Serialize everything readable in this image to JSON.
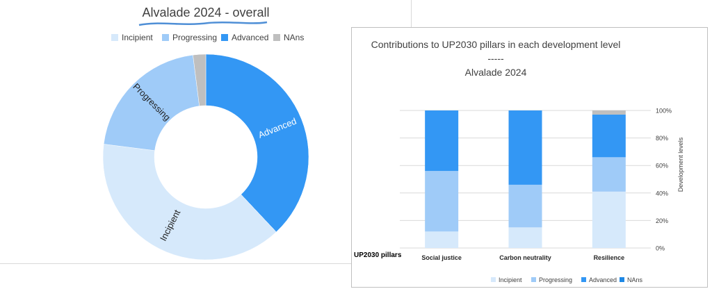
{
  "colors": {
    "incipient": "#d6e9fb",
    "progressing": "#9fcbf8",
    "advanced": "#3397f4",
    "nans": "#bfbfbf",
    "underline": "#4f8fd6",
    "grid": "#d9d9d9",
    "text": "#404040"
  },
  "chart_data": [
    {
      "type": "pie",
      "title": "Alvalade 2024 - overall",
      "legend_placement": "top",
      "legend": [
        "Incipient",
        "Progressing",
        "Advanced",
        "NAns"
      ],
      "slices": [
        {
          "name": "Advanced",
          "value": 38,
          "label": "Advanced",
          "color_key": "advanced"
        },
        {
          "name": "Incipient",
          "value": 39,
          "label": "Incipient",
          "color_key": "incipient"
        },
        {
          "name": "Progressing",
          "value": 21,
          "label": "Progressing",
          "color_key": "progressing"
        },
        {
          "name": "NAns",
          "value": 2,
          "label": "",
          "color_key": "nans"
        }
      ]
    },
    {
      "type": "bar",
      "stacked": true,
      "title_lines": [
        "Contributions to UP2030 pillars in each development level",
        "-----",
        "Alvalade 2024"
      ],
      "xlabel": "UP2030 pillars",
      "ylabel": "Development levels",
      "categories": [
        "Social justice",
        "Carbon neutrality",
        "Resilience"
      ],
      "ylim": [
        0,
        100
      ],
      "yticks": [
        "0%",
        "20%",
        "40%",
        "60%",
        "80%",
        "100%"
      ],
      "grid": true,
      "legend_placement": "bottom",
      "series": [
        {
          "name": "Incipient",
          "values": [
            12,
            15,
            41
          ],
          "color_key": "incipient"
        },
        {
          "name": "Progressing",
          "values": [
            44,
            31,
            25
          ],
          "color_key": "progressing"
        },
        {
          "name": "Advanced",
          "values": [
            44,
            54,
            31
          ],
          "color_key": "advanced"
        },
        {
          "name": "NAns",
          "values": [
            0,
            0,
            3
          ],
          "color_key": "nans"
        }
      ]
    }
  ]
}
